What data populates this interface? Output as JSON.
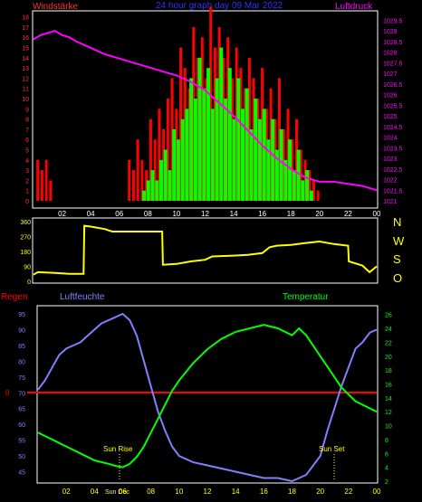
{
  "header": {
    "left_label": "Windstärke",
    "center_title": "24 hour graph day 09 Mar 2022",
    "right_label": "Luftdruck"
  },
  "colors": {
    "background": "#000000",
    "frame": "#ffffff",
    "wind_gust": "#ff0000",
    "wind_avg": "#00ff00",
    "pressure": "#ff00ff",
    "direction": "#ffff00",
    "humidity": "#8080ff",
    "temperature": "#00ff00",
    "rain": "#ff0000",
    "axis_left_top": "#ff3030",
    "axis_right_top": "#ff00ff",
    "axis_dir": "#ffff00",
    "axis_hum": "#8080ff",
    "axis_temp": "#00ff00",
    "time_labels": "#ffff00",
    "title": "#3030ff"
  },
  "x_ticks": [
    "02",
    "04",
    "06",
    "08",
    "10",
    "12",
    "14",
    "16",
    "18",
    "20",
    "22",
    "00"
  ],
  "direction_letters": [
    "N",
    "W",
    "S",
    "O",
    "N"
  ],
  "bottom_labels": {
    "rain": "Regen",
    "humidity": "Luftfeuchte",
    "temperature": "Temperatur",
    "sun_rise": "Sun Rise",
    "sun_set": "Sun Set",
    "sun_dec": "Sun Dec"
  },
  "chart_data": [
    {
      "type": "bar",
      "name": "wind-and-pressure",
      "x_unit": "hour",
      "xlim": [
        0,
        24
      ],
      "left_axis": {
        "ticks": [
          "0",
          "1",
          "2",
          "3",
          "4",
          "5",
          "6",
          "7",
          "8",
          "9",
          "10",
          "11",
          "12",
          "13",
          "14",
          "15",
          "16",
          "17",
          "18"
        ],
        "ylim": [
          0,
          18.5
        ]
      },
      "right_axis": {
        "ticks": [
          "1021",
          "1021.5",
          "1022",
          "1022.5",
          "1023",
          "1023.5",
          "1024",
          "1024.5",
          "1025",
          "1025.5",
          "1026",
          "1026.5",
          "1027",
          "1027.5",
          "1028",
          "1028.5",
          "1029",
          "1029.5"
        ],
        "ylim": [
          1021,
          1029.9
        ]
      },
      "series": [
        {
          "name": "Windstärke",
          "kind": "gust",
          "x": [
            0.2,
            0.5,
            0.8,
            1.1,
            6.6,
            6.9,
            7.2,
            7.5,
            7.8,
            8.1,
            8.4,
            8.7,
            9.0,
            9.3,
            9.6,
            9.9,
            10.2,
            10.5,
            10.8,
            11.1,
            11.4,
            11.7,
            12.0,
            12.3,
            12.6,
            12.9,
            13.2,
            13.5,
            13.8,
            14.1,
            14.4,
            14.7,
            15.0,
            15.3,
            15.6,
            15.9,
            16.2,
            16.5,
            16.8,
            17.1,
            17.4,
            17.7,
            18.0,
            18.3,
            18.6,
            18.9,
            19.2,
            19.5,
            19.8
          ],
          "values": [
            4,
            3,
            4,
            2,
            4,
            3,
            6,
            4,
            3,
            8,
            6,
            9,
            7,
            10,
            12,
            9,
            15,
            13,
            11,
            17,
            14,
            16,
            12,
            19,
            15,
            17,
            14,
            16,
            12,
            15,
            13,
            11,
            14,
            12,
            10,
            13,
            9,
            11,
            8,
            12,
            7,
            9,
            6,
            8,
            5,
            4,
            3,
            2,
            1
          ]
        },
        {
          "name": "Windstärke",
          "kind": "average",
          "x": [
            7.6,
            7.9,
            8.2,
            8.5,
            8.8,
            9.1,
            9.4,
            9.7,
            10.0,
            10.3,
            10.6,
            10.9,
            11.2,
            11.5,
            11.8,
            12.1,
            12.4,
            12.7,
            13.0,
            13.3,
            13.6,
            13.9,
            14.2,
            14.5,
            14.8,
            15.1,
            15.4,
            15.7,
            16.0,
            16.3,
            16.6,
            16.9,
            17.2,
            17.5,
            17.8,
            18.1,
            18.4,
            18.7,
            19.0,
            19.3
          ],
          "values": [
            1,
            2,
            3,
            2,
            4,
            5,
            3,
            7,
            6,
            8,
            9,
            12,
            10,
            14,
            11,
            13,
            9,
            12,
            15,
            10,
            13,
            8,
            12,
            9,
            11,
            7,
            10,
            8,
            9,
            6,
            8,
            5,
            7,
            4,
            6,
            3,
            5,
            2,
            3,
            1
          ]
        },
        {
          "name": "Luftdruck",
          "kind": "pressure",
          "x": [
            0,
            0.5,
            1,
            1.5,
            2,
            2.5,
            3,
            4,
            5,
            6,
            7,
            8,
            9,
            10,
            11,
            12,
            13,
            14,
            15,
            16,
            17,
            18,
            19,
            20,
            21,
            22,
            23,
            24
          ],
          "values": [
            1028.6,
            1028.8,
            1028.9,
            1029.0,
            1028.8,
            1028.7,
            1028.5,
            1028.2,
            1027.9,
            1027.7,
            1027.5,
            1027.3,
            1027.1,
            1026.9,
            1026.6,
            1026.2,
            1025.6,
            1025.0,
            1024.3,
            1023.6,
            1023.0,
            1022.5,
            1022.1,
            1021.9,
            1021.9,
            1021.8,
            1021.7,
            1021.5
          ]
        }
      ]
    },
    {
      "type": "line",
      "name": "wind-direction",
      "x_unit": "hour",
      "xlim": [
        0,
        24
      ],
      "ylim": [
        0,
        360
      ],
      "y_ticks": [
        "0",
        "90",
        "180",
        "270",
        "360"
      ],
      "series": [
        {
          "name": "direction",
          "x": [
            0,
            0.3,
            1.5,
            2.5,
            3.5,
            3.55,
            4,
            5,
            5.5,
            6,
            7,
            8,
            9,
            9.05,
            10,
            11,
            12,
            12.5,
            14,
            15,
            16,
            16.5,
            17,
            18,
            19,
            20,
            21,
            22,
            22.05,
            23,
            23.5,
            24
          ],
          "values": [
            40,
            55,
            50,
            45,
            45,
            335,
            330,
            315,
            300,
            300,
            300,
            300,
            300,
            100,
            105,
            120,
            130,
            150,
            155,
            160,
            170,
            205,
            215,
            220,
            230,
            240,
            225,
            215,
            120,
            95,
            55,
            90
          ]
        }
      ]
    },
    {
      "type": "line",
      "name": "humidity-temperature",
      "x_unit": "hour",
      "xlim": [
        0,
        24
      ],
      "left_axis": {
        "ticks": [
          "45",
          "50",
          "55",
          "60",
          "65",
          "70",
          "75",
          "80",
          "85",
          "90",
          "95"
        ],
        "ylim": [
          42,
          97
        ]
      },
      "right_axis": {
        "ticks": [
          "2",
          "4",
          "6",
          "8",
          "10",
          "12",
          "14",
          "16",
          "18",
          "20",
          "22",
          "24",
          "26"
        ],
        "ylim": [
          2,
          27
        ]
      },
      "rain_marker": "0",
      "series": [
        {
          "name": "Luftfeuchte",
          "axis": "left",
          "x": [
            0,
            0.5,
            1,
            1.5,
            2,
            2.5,
            3,
            3.5,
            4,
            4.5,
            5,
            5.5,
            6,
            6.5,
            7,
            7.5,
            8,
            8.5,
            9,
            9.5,
            10,
            11,
            12,
            13,
            14,
            15,
            16,
            17,
            18,
            19,
            20,
            20.5,
            21,
            21.5,
            22,
            22.5,
            23,
            23.5,
            24
          ],
          "values": [
            71,
            74,
            78,
            82,
            84,
            85,
            86,
            88,
            90,
            92,
            93,
            94,
            95,
            93,
            88,
            80,
            72,
            64,
            58,
            53,
            50,
            48,
            47,
            46,
            45,
            44,
            43,
            43,
            42,
            44,
            50,
            58,
            65,
            72,
            78,
            84,
            86,
            89,
            90
          ]
        },
        {
          "name": "Temperatur",
          "axis": "right",
          "x": [
            0,
            0.5,
            1,
            1.5,
            2,
            3,
            4,
            5,
            5.5,
            6,
            6.5,
            7,
            7.5,
            8,
            8.5,
            9,
            9.5,
            10,
            11,
            12,
            13,
            14,
            15,
            16,
            17,
            18,
            18.5,
            19,
            19.5,
            20,
            20.5,
            21,
            21.5,
            22,
            22.5,
            23,
            23.5,
            24
          ],
          "values": [
            9,
            8.5,
            8,
            7.5,
            7,
            6,
            5,
            4.5,
            4.2,
            4,
            4.5,
            5.5,
            7,
            9,
            11,
            13,
            15,
            16.5,
            19,
            21,
            22.5,
            23.5,
            24,
            24.5,
            24,
            23,
            24,
            23,
            21.5,
            20,
            18.5,
            17,
            15.5,
            14.5,
            13.5,
            13,
            12.5,
            12
          ]
        }
      ]
    }
  ]
}
